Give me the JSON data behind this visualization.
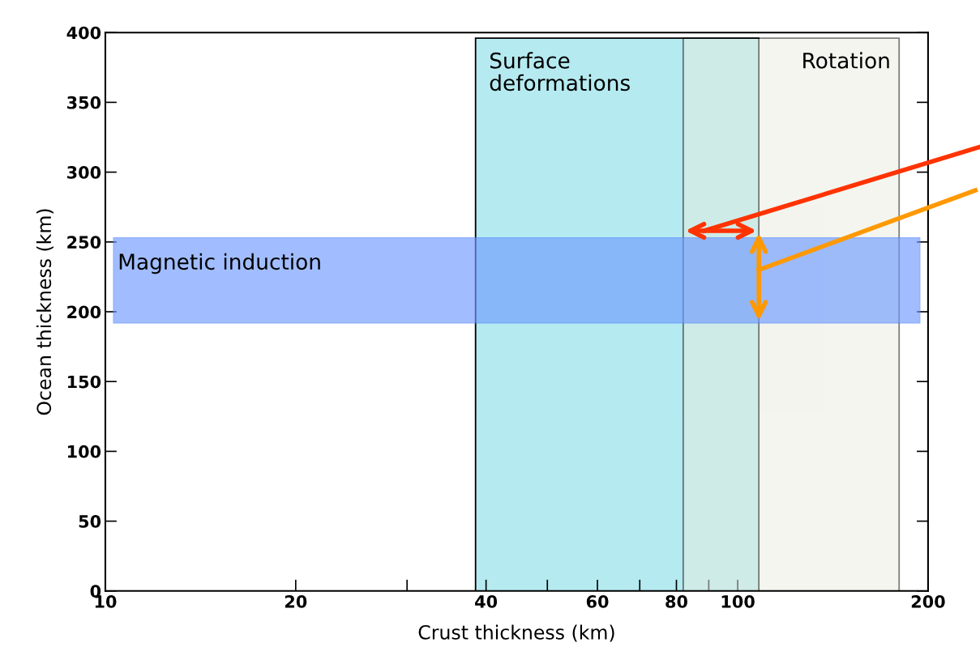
{
  "chart_data": {
    "type": "scatter",
    "xlabel": "Crust thickness (km)",
    "ylabel": "Ocean thickness (km)",
    "log": "x",
    "xlim": [
      10,
      200
    ],
    "xticks": [
      10,
      20,
      {
        "value": 30,
        "label": null
      },
      40,
      {
        "value": 50,
        "label": null
      },
      60,
      {
        "value": 70,
        "label": null
      },
      80,
      {
        "value": 90,
        "label": null
      },
      100,
      200
    ],
    "ylim": [
      0,
      400
    ],
    "yticks": [
      0,
      50,
      100,
      150,
      200,
      250,
      300,
      350,
      400
    ],
    "grid": false,
    "bands": [
      {
        "axis": "x",
        "from": 38.5,
        "to": 108,
        "label": "Surface\ndeformations",
        "color": "#b5ebf0"
      },
      {
        "axis": "x",
        "from": 82,
        "to": 180,
        "label": "Rotation",
        "color": "#e9ebdf"
      },
      {
        "axis": "y",
        "from": 192,
        "to": 253,
        "label": "Magnetic induction",
        "color": "#6f9bff"
      }
    ]
  }
}
